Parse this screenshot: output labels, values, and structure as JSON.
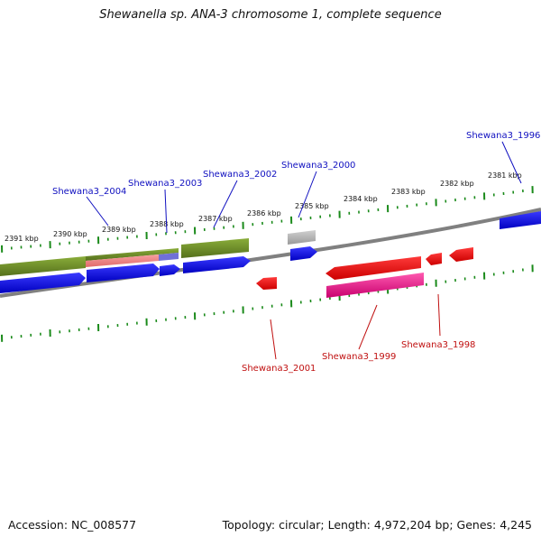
{
  "title": "Shewanella sp. ANA-3 chromosome 1, complete sequence",
  "footer": {
    "accession": "Accession: NC_008577",
    "summary": "Topology: circular; Length: 4,972,204 bp; Genes: 4,245"
  },
  "ruler": {
    "unit": "kbp",
    "ticks": [
      "2391 kbp",
      "2390 kbp",
      "2389 kbp",
      "2388 kbp",
      "2387 kbp",
      "2386 kbp",
      "2385 kbp",
      "2384 kbp",
      "2383 kbp",
      "2382 kbp",
      "2381 kbp"
    ]
  },
  "genes": {
    "forward_labels": [
      "Shewana3_2004",
      "Shewana3_2003",
      "Shewana3_2002",
      "Shewana3_2000",
      "Shewana3_1996"
    ],
    "reverse_labels": [
      "Shewana3_2001",
      "Shewana3_1999",
      "Shewana3_1998"
    ]
  },
  "colors": {
    "forward_gene": "#0000ee",
    "forward_cds": "#6b8e23",
    "reverse_gene": "#ee0000",
    "reverse_cds": "#e0117f",
    "backbone": "#808080",
    "tick": "#1a8a1a",
    "forward_label": "#1010c0",
    "reverse_label": "#c01010"
  }
}
